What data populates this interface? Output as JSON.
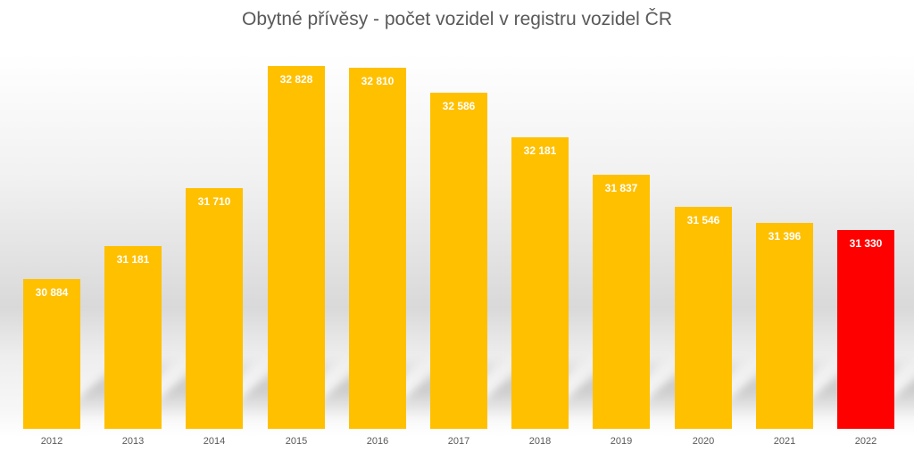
{
  "chart_data": {
    "type": "bar",
    "title": "Obytné přívěsy - počet vozidel v registru vozidel ČR",
    "xlabel": "",
    "ylabel": "",
    "categories": [
      "2012",
      "2013",
      "2014",
      "2015",
      "2016",
      "2017",
      "2018",
      "2019",
      "2020",
      "2021",
      "2022"
    ],
    "values": [
      30884,
      31181,
      31710,
      32828,
      32810,
      32586,
      32181,
      31837,
      31546,
      31396,
      31330
    ],
    "data_labels": [
      "30 884",
      "31 181",
      "31 710",
      "32 828",
      "32 810",
      "32 586",
      "32 181",
      "31 837",
      "31 546",
      "31 396",
      "31 330"
    ],
    "colors": [
      "#FFC000",
      "#FFC000",
      "#FFC000",
      "#FFC000",
      "#FFC000",
      "#FFC000",
      "#FFC000",
      "#FFC000",
      "#FFC000",
      "#FFC000",
      "#FF0000"
    ],
    "highlight": {
      "category": "2022",
      "color": "#FF0000"
    },
    "bar_color": "#FFC000",
    "axis_visible": false,
    "grid": false,
    "legend": "none",
    "ylim": [
      29517,
      32828
    ]
  }
}
